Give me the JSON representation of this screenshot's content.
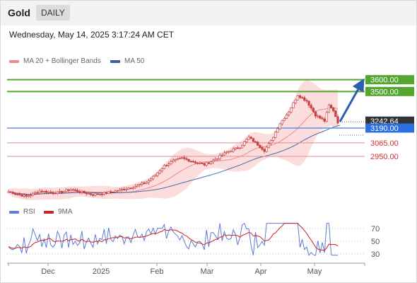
{
  "header": {
    "title": "Gold",
    "timeframe_button": "DAILY"
  },
  "datetime": "Wednesday, May 14, 2025 3:17:24 AM CET",
  "colors": {
    "candle": "#d23c3c",
    "ma20": "#f08a8a",
    "band": "#f8c8c8",
    "ma50": "#4a6aa8",
    "resistance": "#55a630",
    "price": "#333333",
    "support": "#e07070",
    "rsi": "#5b7bd5",
    "rsi_ma": "#cc2222"
  },
  "chart_data": [
    {
      "type": "candlestick",
      "legend": [
        {
          "name": "MA 20 + Bollinger Bands",
          "color": "#f08a8a"
        },
        {
          "name": "MA 50",
          "color": "#3a5f9f"
        }
      ],
      "x_labels": [
        "Dec",
        "2025",
        "Feb",
        "Mar",
        "Apr",
        "May"
      ],
      "y_range": [
        2560,
        3700
      ],
      "levels": [
        {
          "label": "3600.00",
          "value": 3600,
          "kind": "resistance",
          "tag_color": "#55a630"
        },
        {
          "label": "3500.00",
          "value": 3500,
          "kind": "resistance",
          "tag_color": "#55a630"
        },
        {
          "label": "3242.64",
          "value": 3242.64,
          "kind": "price",
          "tag_color": "#333333"
        },
        {
          "label": "3190.00",
          "value": 3190,
          "kind": "blue",
          "tag_color": "#2b6fe0"
        },
        {
          "label": "3065.00",
          "value": 3065,
          "kind": "support",
          "tag_color": ""
        },
        {
          "label": "2950.00",
          "value": 2950,
          "kind": "support",
          "tag_color": ""
        }
      ],
      "forecast_arrow": {
        "from": 3245,
        "to": 3600
      }
    },
    {
      "type": "line",
      "legend": [
        {
          "name": "RSI",
          "color": "#5b7bd5"
        },
        {
          "name": "9MA",
          "color": "#cc2222"
        }
      ],
      "y_ticks": [
        "70",
        "50",
        "30"
      ],
      "y_range": [
        20,
        82
      ]
    }
  ]
}
